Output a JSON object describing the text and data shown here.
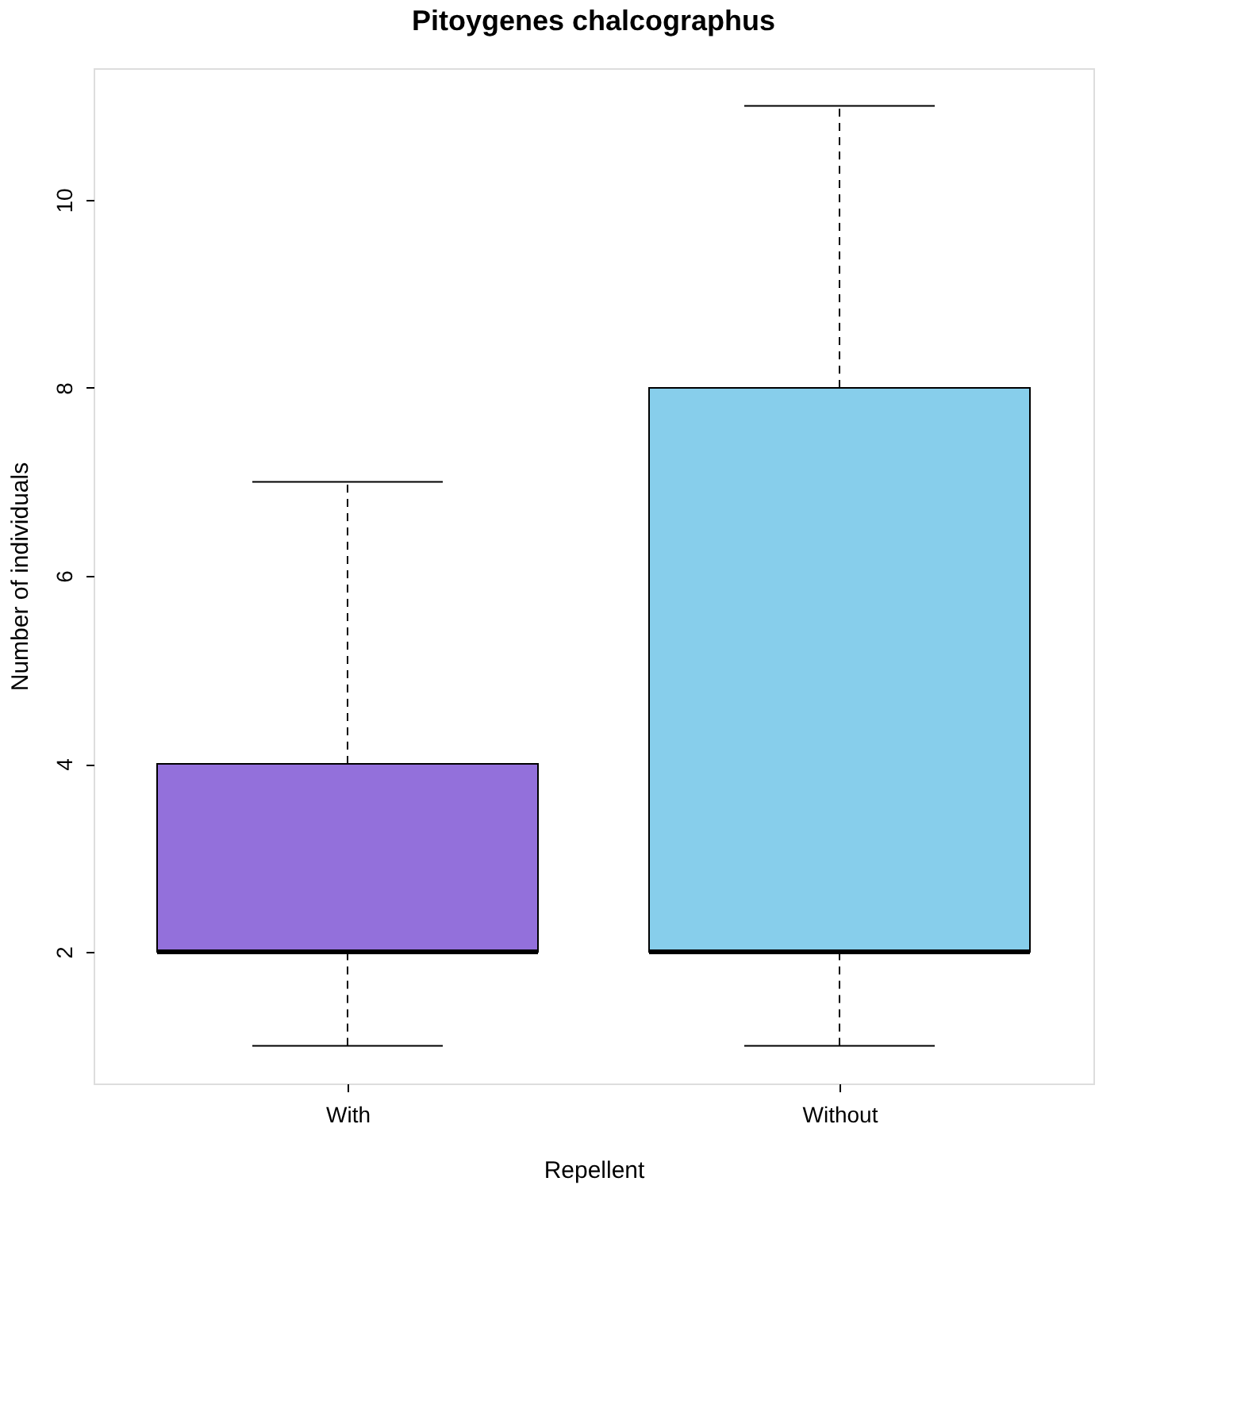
{
  "chart_data": {
    "type": "box",
    "title": "Pitoygenes chalcographus",
    "xlabel": "Repellent",
    "ylabel": "Number of individuals",
    "categories": [
      "With",
      "Without"
    ],
    "colors": [
      "#9370db",
      "#87ceeb"
    ],
    "boxes": [
      {
        "low": 1,
        "q1": 2,
        "median": 2,
        "q3": 4,
        "high": 7
      },
      {
        "low": 1,
        "q1": 2,
        "median": 2,
        "q3": 8,
        "high": 11
      }
    ],
    "ylim": [
      0.6,
      11.4
    ],
    "yticks": [
      2,
      4,
      6,
      8,
      10
    ]
  }
}
